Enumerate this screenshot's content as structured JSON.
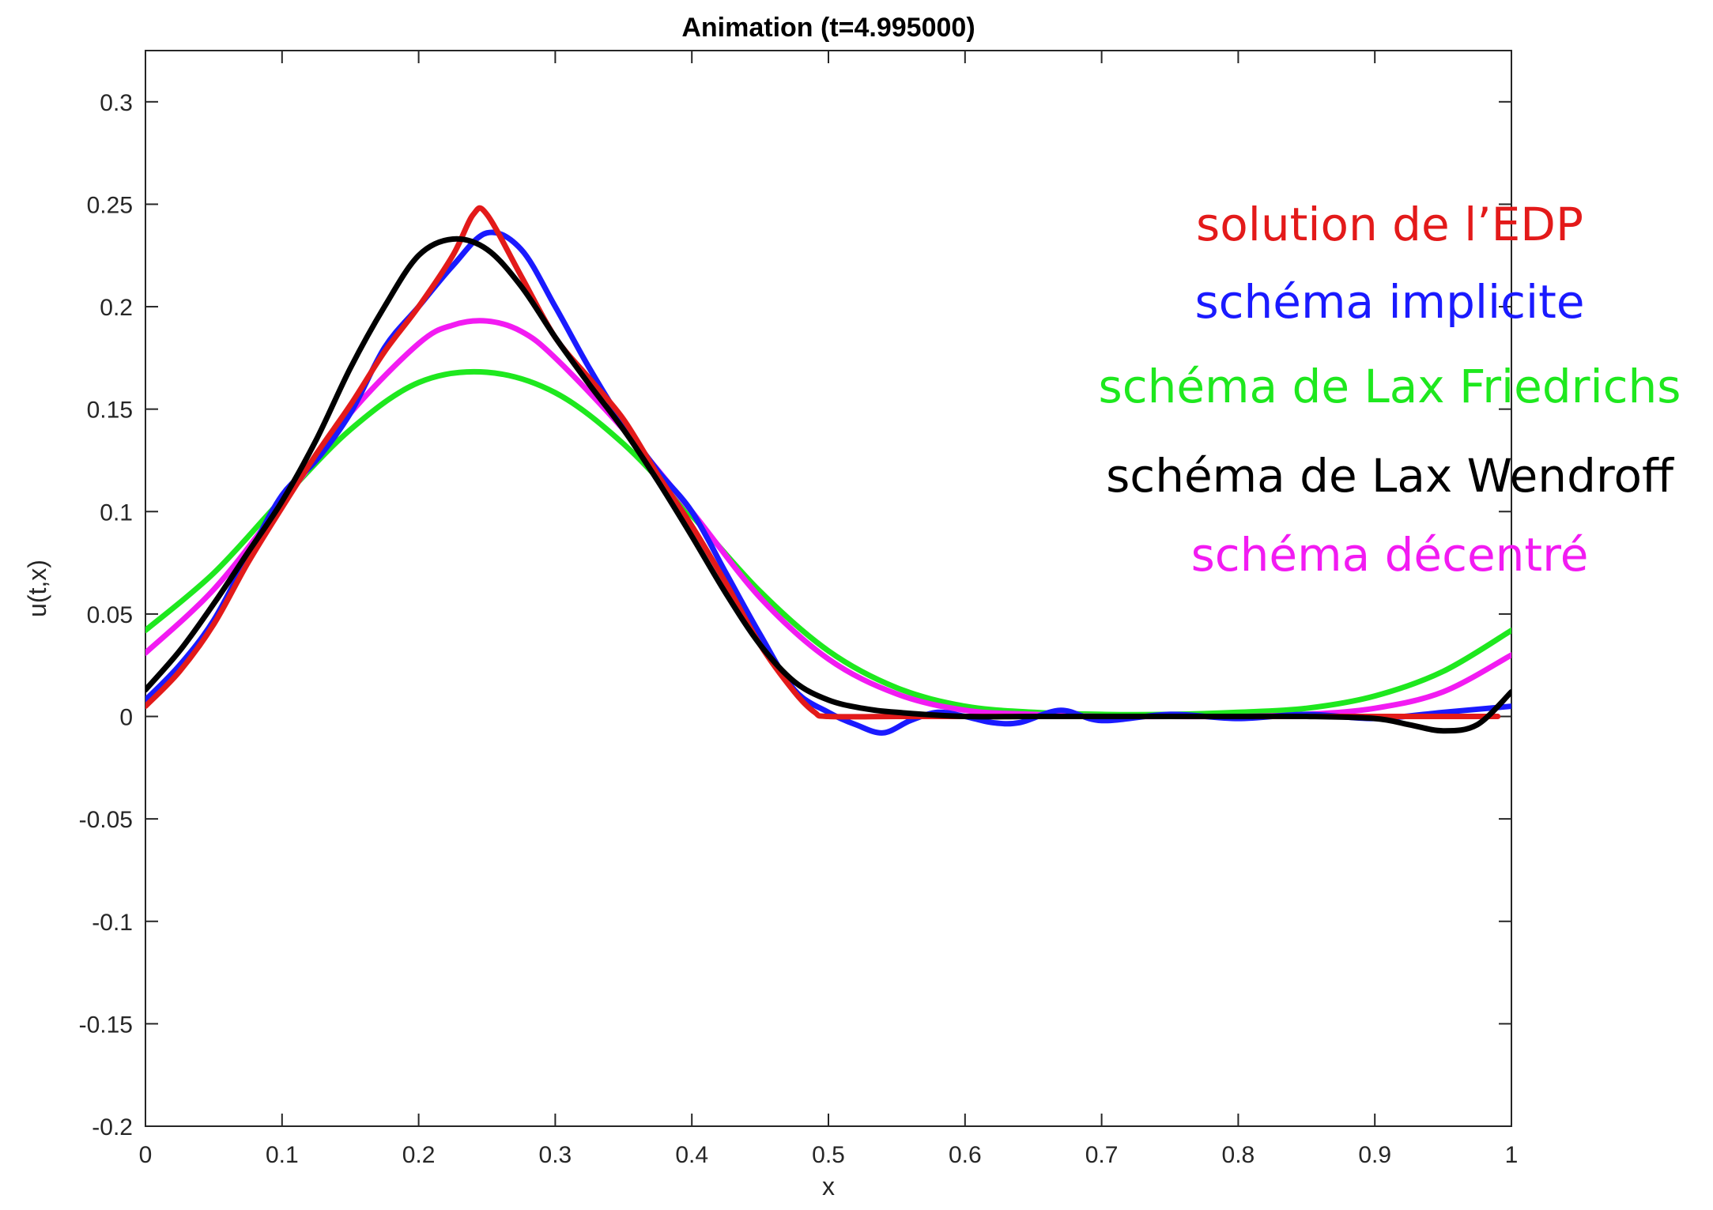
{
  "chart_data": {
    "type": "line",
    "title": "Animation (t=4.995000)",
    "xlabel": "x",
    "ylabel": "u(t,x)",
    "xlim": [
      0,
      1
    ],
    "ylim": [
      -0.2,
      0.325
    ],
    "xticks": [
      0,
      0.1,
      0.2,
      0.3,
      0.4,
      0.5,
      0.6,
      0.7,
      0.8,
      0.9,
      1
    ],
    "xtick_labels": [
      "0",
      "0.1",
      "0.2",
      "0.3",
      "0.4",
      "0.5",
      "0.6",
      "0.7",
      "0.8",
      "0.9",
      "1"
    ],
    "yticks": [
      -0.2,
      -0.15,
      -0.1,
      -0.05,
      0,
      0.05,
      0.1,
      0.15,
      0.2,
      0.25,
      0.3
    ],
    "ytick_labels": [
      "-0.2",
      "-0.15",
      "-0.1",
      "-0.05",
      "0",
      "0.05",
      "0.1",
      "0.15",
      "0.2",
      "0.25",
      "0.3"
    ],
    "grid": false,
    "legend_position": "top-right",
    "series": [
      {
        "name": "solution de l’EDP",
        "color": "#e31a1a",
        "x": [
          0,
          0.025,
          0.05,
          0.075,
          0.1,
          0.125,
          0.15,
          0.175,
          0.2,
          0.225,
          0.24,
          0.25,
          0.275,
          0.3,
          0.325,
          0.35,
          0.375,
          0.4,
          0.425,
          0.45,
          0.475,
          0.49,
          0.5,
          0.55,
          0.6,
          0.7,
          0.8,
          0.9,
          0.99
        ],
        "y": [
          0.005,
          0.022,
          0.045,
          0.075,
          0.102,
          0.128,
          0.152,
          0.178,
          0.2,
          0.225,
          0.245,
          0.245,
          0.215,
          0.185,
          0.165,
          0.145,
          0.118,
          0.093,
          0.065,
          0.035,
          0.012,
          0.002,
          0,
          0,
          0,
          0,
          0,
          0,
          0
        ]
      },
      {
        "name": "schéma implicite",
        "color": "#1a1aff",
        "x": [
          0,
          0.025,
          0.05,
          0.075,
          0.1,
          0.125,
          0.15,
          0.175,
          0.2,
          0.225,
          0.25,
          0.275,
          0.3,
          0.325,
          0.35,
          0.375,
          0.4,
          0.425,
          0.45,
          0.475,
          0.5,
          0.52,
          0.54,
          0.56,
          0.58,
          0.6,
          0.62,
          0.64,
          0.67,
          0.7,
          0.75,
          0.8,
          0.85,
          0.9,
          0.95,
          1
        ],
        "y": [
          0.008,
          0.025,
          0.047,
          0.078,
          0.108,
          0.125,
          0.148,
          0.18,
          0.2,
          0.22,
          0.236,
          0.228,
          0.2,
          0.17,
          0.143,
          0.12,
          0.1,
          0.07,
          0.04,
          0.013,
          0.002,
          -0.004,
          -0.008,
          -0.002,
          0.002,
          0,
          -0.003,
          -0.003,
          0.003,
          -0.002,
          0.001,
          -0.001,
          0.001,
          -0.001,
          0.002,
          0.005
        ]
      },
      {
        "name": "schéma de Lax Friedrichs",
        "color": "#1ee81e",
        "x": [
          0,
          0.05,
          0.1,
          0.15,
          0.2,
          0.25,
          0.3,
          0.35,
          0.4,
          0.45,
          0.5,
          0.55,
          0.6,
          0.65,
          0.7,
          0.75,
          0.8,
          0.85,
          0.9,
          0.95,
          1
        ],
        "y": [
          0.042,
          0.07,
          0.106,
          0.14,
          0.163,
          0.168,
          0.158,
          0.133,
          0.098,
          0.061,
          0.032,
          0.014,
          0.005,
          0.002,
          0.001,
          0.001,
          0.002,
          0.004,
          0.01,
          0.022,
          0.042
        ]
      },
      {
        "name": "schéma de Lax Wendroff",
        "color": "#000000",
        "x": [
          0,
          0.025,
          0.05,
          0.075,
          0.1,
          0.125,
          0.15,
          0.175,
          0.2,
          0.225,
          0.25,
          0.275,
          0.3,
          0.325,
          0.35,
          0.375,
          0.4,
          0.425,
          0.45,
          0.475,
          0.5,
          0.525,
          0.55,
          0.6,
          0.65,
          0.7,
          0.75,
          0.8,
          0.85,
          0.9,
          0.925,
          0.95,
          0.975,
          1
        ],
        "y": [
          0.013,
          0.032,
          0.055,
          0.08,
          0.105,
          0.135,
          0.17,
          0.2,
          0.225,
          0.233,
          0.228,
          0.21,
          0.185,
          0.162,
          0.14,
          0.115,
          0.088,
          0.06,
          0.035,
          0.017,
          0.008,
          0.004,
          0.002,
          0,
          0,
          0,
          0,
          0,
          0,
          -0.001,
          -0.004,
          -0.007,
          -0.004,
          0.012
        ]
      },
      {
        "name": "schéma décentré",
        "color": "#f21bf2",
        "x": [
          0,
          0.05,
          0.1,
          0.15,
          0.2,
          0.225,
          0.25,
          0.275,
          0.3,
          0.35,
          0.4,
          0.45,
          0.5,
          0.55,
          0.6,
          0.65,
          0.7,
          0.75,
          0.8,
          0.85,
          0.9,
          0.95,
          1
        ],
        "y": [
          0.031,
          0.062,
          0.104,
          0.148,
          0.182,
          0.191,
          0.193,
          0.188,
          0.175,
          0.14,
          0.1,
          0.058,
          0.028,
          0.011,
          0.003,
          0.001,
          0,
          0,
          0,
          0.001,
          0.004,
          0.012,
          0.03
        ]
      }
    ]
  }
}
